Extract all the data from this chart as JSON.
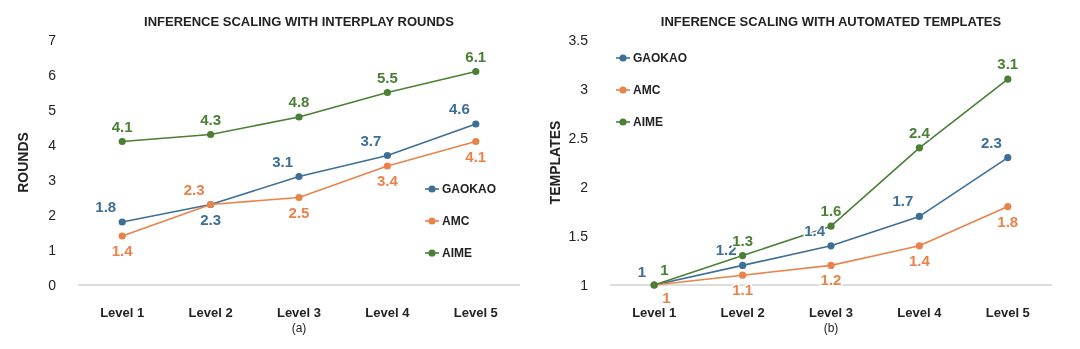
{
  "chart_data": [
    {
      "type": "line",
      "title": "INFERENCE SCALING WITH INTERPLAY ROUNDS",
      "xlabel": "(a)",
      "ylabel": "ROUNDS",
      "categories": [
        "Level 1",
        "Level 2",
        "Level 3",
        "Level 4",
        "Level 5"
      ],
      "series": [
        {
          "name": "GAOKAO",
          "color": "#3d6f96",
          "values": [
            1.8,
            2.3,
            3.1,
            3.7,
            4.6
          ]
        },
        {
          "name": "AMC",
          "color": "#e8834c",
          "values": [
            1.4,
            2.3,
            2.5,
            3.4,
            4.1
          ]
        },
        {
          "name": "AIME",
          "color": "#4b7f36",
          "values": [
            4.1,
            4.3,
            4.8,
            5.5,
            6.1
          ]
        }
      ],
      "ylim": [
        0,
        7
      ],
      "yticks": [
        0,
        1,
        2,
        3,
        4,
        5,
        6,
        7
      ],
      "grid": false,
      "legend": "bottom right",
      "marker": "circle",
      "line_style": "solid",
      "data_labels": true
    },
    {
      "type": "line",
      "title": "INFERENCE SCALING WITH AUTOMATED TEMPLATES",
      "xlabel": "(b)",
      "ylabel": "TEMPLATES",
      "categories": [
        "Level 1",
        "Level 2",
        "Level 3",
        "Level 4",
        "Level 5"
      ],
      "series": [
        {
          "name": "GAOKAO",
          "color": "#3d6f96",
          "values": [
            1,
            1.2,
            1.4,
            1.7,
            2.3
          ]
        },
        {
          "name": "AMC",
          "color": "#e8834c",
          "values": [
            1,
            1.1,
            1.2,
            1.4,
            1.8
          ]
        },
        {
          "name": "AIME",
          "color": "#4b7f36",
          "values": [
            1,
            1.3,
            1.6,
            2.4,
            3.1
          ]
        }
      ],
      "ylim": [
        1,
        3.5
      ],
      "yticks": [
        1,
        1.5,
        2,
        2.5,
        3,
        3.5
      ],
      "grid": false,
      "legend": "top left",
      "marker": "circle",
      "line_style": "solid",
      "data_labels": true
    }
  ]
}
